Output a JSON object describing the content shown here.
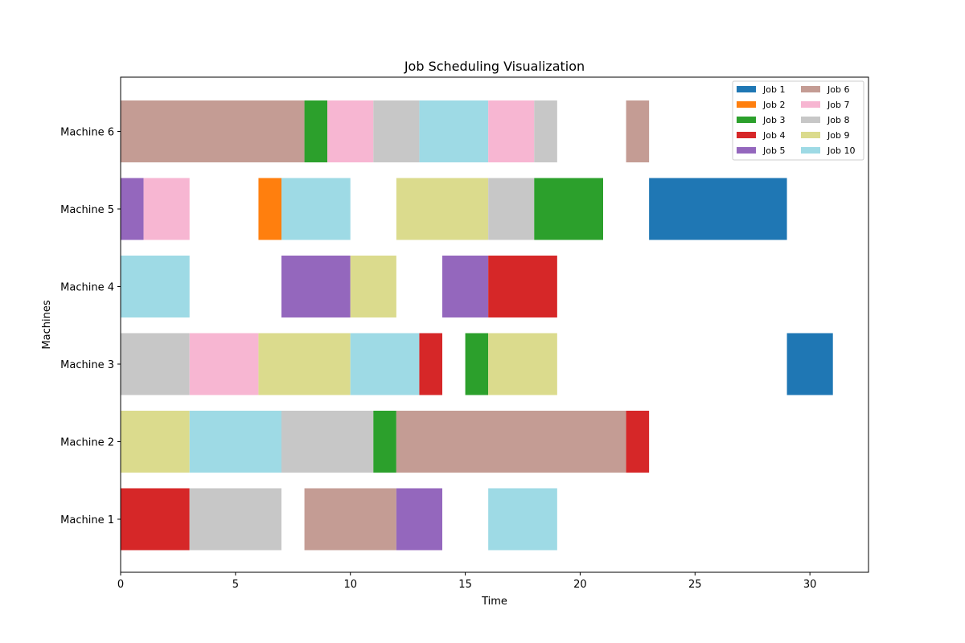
{
  "chart_data": {
    "type": "gantt",
    "title": "Job Scheduling Visualization",
    "xlabel": "Time",
    "ylabel": "Machines",
    "xlim": [
      0,
      32.55
    ],
    "xticks": [
      0,
      5,
      10,
      15,
      20,
      25,
      30
    ],
    "grid": false,
    "legend_position": "top-right",
    "machines": [
      "Machine 1",
      "Machine 2",
      "Machine 3",
      "Machine 4",
      "Machine 5",
      "Machine 6"
    ],
    "jobs": [
      {
        "name": "Job 1",
        "color": "#1f77b4"
      },
      {
        "name": "Job 2",
        "color": "#ff7f0e"
      },
      {
        "name": "Job 3",
        "color": "#2ca02c"
      },
      {
        "name": "Job 4",
        "color": "#d62728"
      },
      {
        "name": "Job 5",
        "color": "#9467bd"
      },
      {
        "name": "Job 6",
        "color": "#c49c94"
      },
      {
        "name": "Job 7",
        "color": "#f7b6d2"
      },
      {
        "name": "Job 8",
        "color": "#c7c7c7"
      },
      {
        "name": "Job 9",
        "color": "#dbdb8d"
      },
      {
        "name": "Job 10",
        "color": "#9edae5"
      }
    ],
    "tasks": [
      {
        "machine": "Machine 1",
        "job": "Job 4",
        "start": 0,
        "end": 3
      },
      {
        "machine": "Machine 1",
        "job": "Job 8",
        "start": 3,
        "end": 7
      },
      {
        "machine": "Machine 1",
        "job": "Job 6",
        "start": 8,
        "end": 12
      },
      {
        "machine": "Machine 1",
        "job": "Job 5",
        "start": 12,
        "end": 14
      },
      {
        "machine": "Machine 1",
        "job": "Job 10",
        "start": 16,
        "end": 19
      },
      {
        "machine": "Machine 2",
        "job": "Job 9",
        "start": 0,
        "end": 3
      },
      {
        "machine": "Machine 2",
        "job": "Job 10",
        "start": 3,
        "end": 7
      },
      {
        "machine": "Machine 2",
        "job": "Job 8",
        "start": 7,
        "end": 11
      },
      {
        "machine": "Machine 2",
        "job": "Job 3",
        "start": 11,
        "end": 12
      },
      {
        "machine": "Machine 2",
        "job": "Job 6",
        "start": 12,
        "end": 22
      },
      {
        "machine": "Machine 2",
        "job": "Job 4",
        "start": 22,
        "end": 23
      },
      {
        "machine": "Machine 3",
        "job": "Job 8",
        "start": 0,
        "end": 3
      },
      {
        "machine": "Machine 3",
        "job": "Job 7",
        "start": 3,
        "end": 6
      },
      {
        "machine": "Machine 3",
        "job": "Job 9",
        "start": 6,
        "end": 10
      },
      {
        "machine": "Machine 3",
        "job": "Job 10",
        "start": 10,
        "end": 13
      },
      {
        "machine": "Machine 3",
        "job": "Job 4",
        "start": 13,
        "end": 14
      },
      {
        "machine": "Machine 3",
        "job": "Job 3",
        "start": 15,
        "end": 16
      },
      {
        "machine": "Machine 3",
        "job": "Job 9",
        "start": 16,
        "end": 19
      },
      {
        "machine": "Machine 3",
        "job": "Job 1",
        "start": 29,
        "end": 31
      },
      {
        "machine": "Machine 4",
        "job": "Job 10",
        "start": 0,
        "end": 3
      },
      {
        "machine": "Machine 4",
        "job": "Job 5",
        "start": 7,
        "end": 10
      },
      {
        "machine": "Machine 4",
        "job": "Job 9",
        "start": 10,
        "end": 12
      },
      {
        "machine": "Machine 4",
        "job": "Job 5",
        "start": 14,
        "end": 16
      },
      {
        "machine": "Machine 4",
        "job": "Job 4",
        "start": 16,
        "end": 19
      },
      {
        "machine": "Machine 5",
        "job": "Job 5",
        "start": 0,
        "end": 1
      },
      {
        "machine": "Machine 5",
        "job": "Job 7",
        "start": 1,
        "end": 3
      },
      {
        "machine": "Machine 5",
        "job": "Job 2",
        "start": 6,
        "end": 7
      },
      {
        "machine": "Machine 5",
        "job": "Job 10",
        "start": 7,
        "end": 10
      },
      {
        "machine": "Machine 5",
        "job": "Job 9",
        "start": 12,
        "end": 16
      },
      {
        "machine": "Machine 5",
        "job": "Job 8",
        "start": 16,
        "end": 18
      },
      {
        "machine": "Machine 5",
        "job": "Job 3",
        "start": 18,
        "end": 21
      },
      {
        "machine": "Machine 5",
        "job": "Job 1",
        "start": 23,
        "end": 29
      },
      {
        "machine": "Machine 6",
        "job": "Job 6",
        "start": 0,
        "end": 8
      },
      {
        "machine": "Machine 6",
        "job": "Job 3",
        "start": 8,
        "end": 9
      },
      {
        "machine": "Machine 6",
        "job": "Job 7",
        "start": 9,
        "end": 11
      },
      {
        "machine": "Machine 6",
        "job": "Job 8",
        "start": 11,
        "end": 13
      },
      {
        "machine": "Machine 6",
        "job": "Job 10",
        "start": 13,
        "end": 16
      },
      {
        "machine": "Machine 6",
        "job": "Job 7",
        "start": 16,
        "end": 18
      },
      {
        "machine": "Machine 6",
        "job": "Job 8",
        "start": 18,
        "end": 19
      },
      {
        "machine": "Machine 6",
        "job": "Job 6",
        "start": 22,
        "end": 23
      }
    ]
  }
}
